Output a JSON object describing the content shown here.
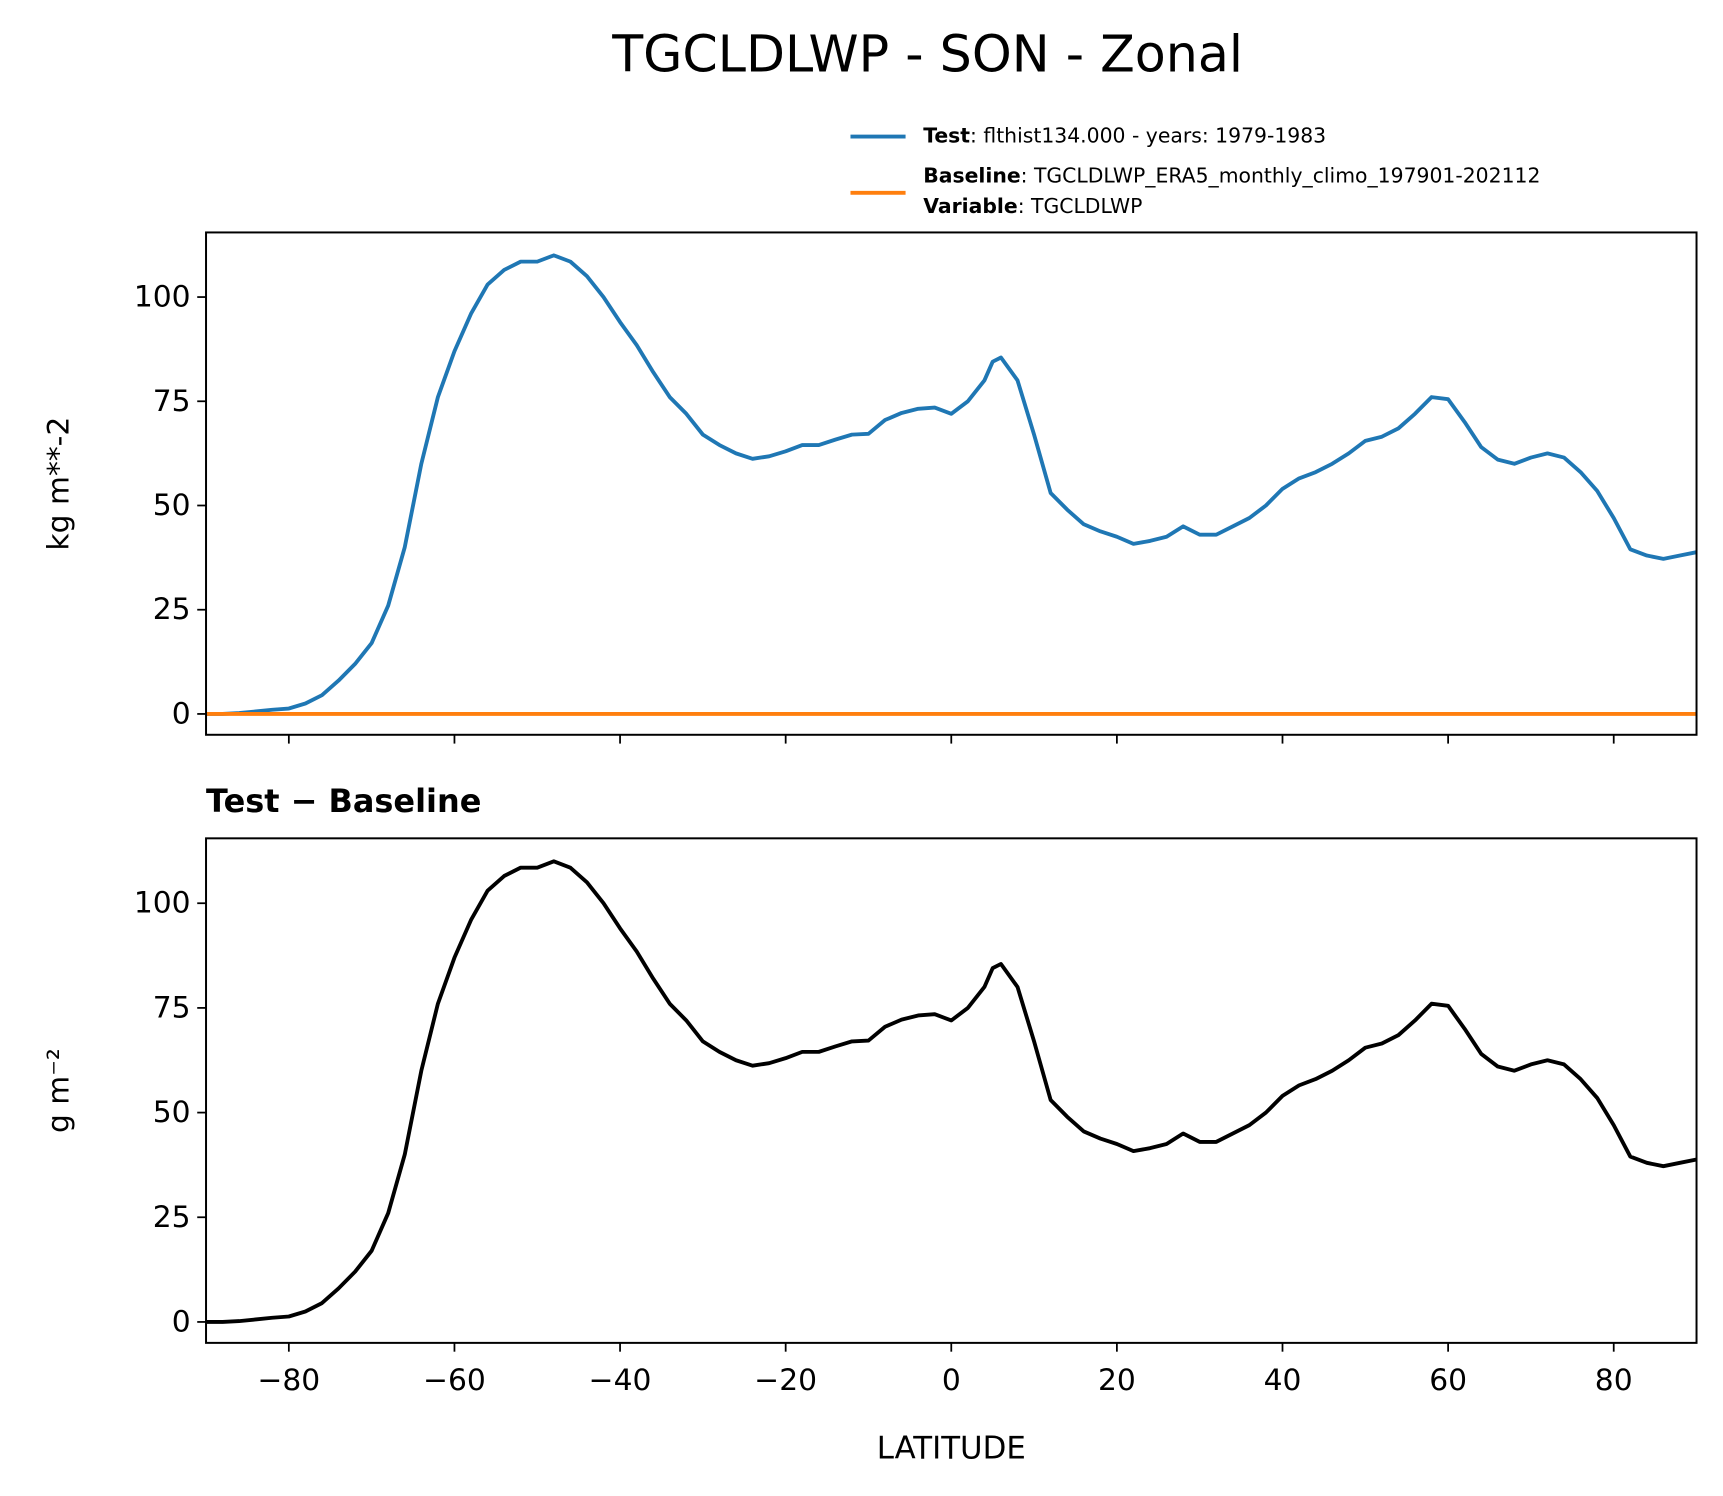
{
  "title": "TGCLDLWP - SON - Zonal",
  "chart_data": [
    {
      "type": "line",
      "ylabel": "kg m**-2",
      "xlim": [
        -90,
        90
      ],
      "ylim": [
        -5,
        115.5
      ],
      "xticks": [
        -80,
        -60,
        -40,
        -20,
        0,
        20,
        40,
        60,
        80
      ],
      "xtick_labels": false,
      "yticks": [
        0,
        25,
        50,
        75,
        100
      ],
      "legend": "upper right",
      "series": [
        {
          "name": "Test",
          "description": ": flthist134.000 - years: 1979-1983",
          "color": "#1f77b4",
          "x": [
            -90,
            -88,
            -86,
            -84,
            -82,
            -80,
            -78,
            -76,
            -74,
            -72,
            -70,
            -68,
            -66,
            -64,
            -62,
            -60,
            -58,
            -56,
            -54,
            -52,
            -50,
            -48,
            -46,
            -44,
            -42,
            -40,
            -38,
            -36,
            -34,
            -32,
            -30,
            -28,
            -26,
            -24,
            -22,
            -20,
            -18,
            -16,
            -14,
            -12,
            -10,
            -8,
            -6,
            -4,
            -2,
            0,
            2,
            4,
            5,
            6,
            8,
            10,
            12,
            14,
            16,
            18,
            20,
            22,
            24,
            26,
            28,
            30,
            32,
            34,
            36,
            38,
            40,
            42,
            44,
            46,
            48,
            50,
            52,
            54,
            56,
            58,
            60,
            62,
            64,
            66,
            68,
            70,
            72,
            74,
            76,
            78,
            80,
            82,
            84,
            86,
            88,
            90
          ],
          "values": [
            0,
            0,
            0.2,
            0.6,
            1,
            1.3,
            2.5,
            4.5,
            8,
            12,
            17,
            26,
            40,
            60,
            76,
            87,
            96,
            103,
            106.5,
            108.5,
            108.5,
            110,
            108.5,
            105,
            100,
            94,
            88.5,
            82,
            76,
            72,
            67,
            64.5,
            62.5,
            61.2,
            61.8,
            63,
            64.5,
            64.5,
            65.8,
            67,
            67.2,
            70.5,
            72.2,
            73.2,
            73.5,
            72,
            75,
            80,
            84.5,
            85.5,
            80,
            67,
            53,
            49,
            45.5,
            43.8,
            42.5,
            40.8,
            41.5,
            42.5,
            45,
            43,
            43,
            45,
            47,
            50,
            54,
            56.5,
            58,
            60,
            62.5,
            65.5,
            66.5,
            68.5,
            72,
            76,
            75.5,
            70,
            64,
            61,
            60,
            61.5,
            62.5,
            61.5,
            58,
            53.5,
            47,
            39.5,
            38,
            37.2,
            38,
            38.8
          ]
        },
        {
          "name": "Baseline",
          "description": ": TGCLDLWP_ERA5_monthly_climo_197901-202112",
          "color": "#ff7f0e",
          "extra": {
            "name": "Variable",
            "description": ": TGCLDLWP"
          },
          "x": [
            -90,
            -45,
            0,
            45,
            90
          ],
          "values": [
            0,
            0,
            0,
            0,
            0
          ]
        }
      ]
    },
    {
      "type": "line",
      "title": "Test − Baseline",
      "ylabel": "g m⁻²",
      "xlabel": "LATITUDE",
      "xlim": [
        -90,
        90
      ],
      "ylim": [
        -5,
        115.5
      ],
      "xticks": [
        {
          "value": -80,
          "label": "−80"
        },
        {
          "value": -60,
          "label": "−60"
        },
        {
          "value": -40,
          "label": "−40"
        },
        {
          "value": -20,
          "label": "−20"
        },
        0,
        20,
        40,
        60,
        80
      ],
      "yticks": [
        0,
        25,
        50,
        75,
        100
      ],
      "color": "#000000",
      "x": [
        -90,
        -88,
        -86,
        -84,
        -82,
        -80,
        -78,
        -76,
        -74,
        -72,
        -70,
        -68,
        -66,
        -64,
        -62,
        -60,
        -58,
        -56,
        -54,
        -52,
        -50,
        -48,
        -46,
        -44,
        -42,
        -40,
        -38,
        -36,
        -34,
        -32,
        -30,
        -28,
        -26,
        -24,
        -22,
        -20,
        -18,
        -16,
        -14,
        -12,
        -10,
        -8,
        -6,
        -4,
        -2,
        0,
        2,
        4,
        5,
        6,
        8,
        10,
        12,
        14,
        16,
        18,
        20,
        22,
        24,
        26,
        28,
        30,
        32,
        34,
        36,
        38,
        40,
        42,
        44,
        46,
        48,
        50,
        52,
        54,
        56,
        58,
        60,
        62,
        64,
        66,
        68,
        70,
        72,
        74,
        76,
        78,
        80,
        82,
        84,
        86,
        88,
        90
      ],
      "values": [
        0,
        0,
        0.2,
        0.6,
        1,
        1.3,
        2.5,
        4.5,
        8,
        12,
        17,
        26,
        40,
        60,
        76,
        87,
        96,
        103,
        106.5,
        108.5,
        108.5,
        110,
        108.5,
        105,
        100,
        94,
        88.5,
        82,
        76,
        72,
        67,
        64.5,
        62.5,
        61.2,
        61.8,
        63,
        64.5,
        64.5,
        65.8,
        67,
        67.2,
        70.5,
        72.2,
        73.2,
        73.5,
        72,
        75,
        80,
        84.5,
        85.5,
        80,
        67,
        53,
        49,
        45.5,
        43.8,
        42.5,
        40.8,
        41.5,
        42.5,
        45,
        43,
        43,
        45,
        47,
        50,
        54,
        56.5,
        58,
        60,
        62.5,
        65.5,
        66.5,
        68.5,
        72,
        76,
        75.5,
        70,
        64,
        61,
        60,
        61.5,
        62.5,
        61.5,
        58,
        53.5,
        47,
        39.5,
        38,
        37.2,
        38,
        38.8
      ]
    }
  ]
}
